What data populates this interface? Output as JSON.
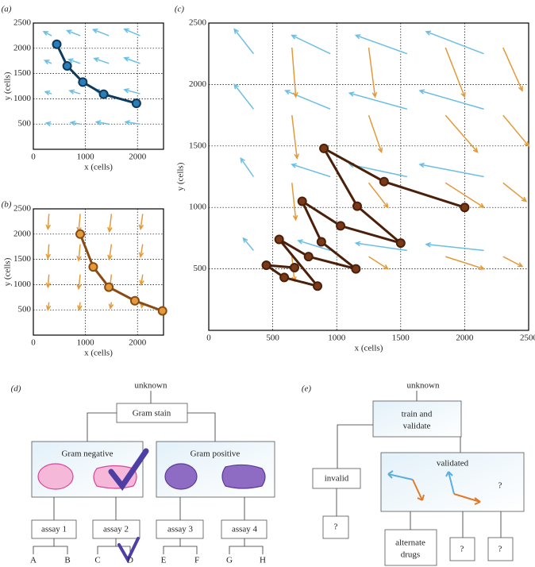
{
  "chart_data": [
    {
      "type": "line",
      "label": "(a)",
      "xlabel": "x (cells)",
      "ylabel": "y (cells)",
      "xlim": [
        0,
        2500
      ],
      "ylim": [
        0,
        2500
      ],
      "xticks": [
        0,
        1000,
        2000
      ],
      "yticks": [
        500,
        1000,
        1500,
        2000,
        2500
      ],
      "grid": true,
      "x": [
        450,
        650,
        950,
        1350,
        1980
      ],
      "series": [
        {
          "color": "#2a7db5",
          "edge": "#0d3a5e",
          "values": [
            2080,
            1650,
            1330,
            1090,
            910
          ]
        }
      ],
      "vectors": [
        {
          "color": "#6cbfe3",
          "x": [
            350,
            900,
            1450,
            2050,
            350,
            900,
            1450,
            2050,
            350,
            900,
            1450,
            2050,
            350,
            900,
            1450,
            2050
          ],
          "y": [
            2250,
            2250,
            2250,
            2250,
            1700,
            1700,
            1700,
            1700,
            1100,
            1100,
            1100,
            1100,
            500,
            500,
            500,
            500
          ],
          "u": [
            -150,
            -250,
            -300,
            -300,
            -130,
            -220,
            -280,
            -300,
            -120,
            -200,
            -260,
            -300,
            -100,
            -180,
            -240,
            -280
          ],
          "v": [
            80,
            100,
            120,
            130,
            60,
            80,
            100,
            110,
            40,
            60,
            70,
            80,
            20,
            30,
            40,
            40
          ]
        }
      ]
    },
    {
      "type": "line",
      "label": "(b)",
      "xlabel": "x (cells)",
      "ylabel": "y (cells)",
      "xlim": [
        0,
        2500
      ],
      "ylim": [
        0,
        2500
      ],
      "xticks": [
        0,
        1000,
        2000
      ],
      "yticks": [
        500,
        1000,
        1500,
        2000,
        2500
      ],
      "grid": true,
      "x": [
        900,
        1150,
        1450,
        1950,
        2480
      ],
      "series": [
        {
          "color": "#e39a3b",
          "edge": "#8a4a14",
          "values": [
            2000,
            1350,
            950,
            680,
            480
          ]
        }
      ],
      "vectors": [
        {
          "color": "#e39a3b",
          "x": [
            300,
            900,
            1500,
            2100,
            300,
            900,
            1500,
            2100,
            300,
            900,
            1500,
            2100,
            300,
            900,
            1500,
            2100
          ],
          "y": [
            2400,
            2400,
            2400,
            2400,
            1800,
            1800,
            1800,
            1800,
            1200,
            1200,
            1200,
            1200,
            650,
            650,
            650,
            650
          ],
          "u": [
            -20,
            -30,
            -40,
            -40,
            -20,
            -30,
            -40,
            -40,
            -20,
            -30,
            -30,
            -30,
            -20,
            -20,
            -20,
            -20
          ],
          "v": [
            -300,
            -350,
            -350,
            -300,
            -280,
            -320,
            -300,
            -250,
            -250,
            -280,
            -250,
            -200,
            -150,
            -150,
            -120,
            -100
          ]
        }
      ]
    },
    {
      "type": "line",
      "label": "(c)",
      "xlabel": "x (cells)",
      "ylabel": "y (cells)",
      "xlim": [
        0,
        2500
      ],
      "ylim": [
        0,
        2500
      ],
      "xticks": [
        0,
        500,
        1000,
        1500,
        2000,
        2500
      ],
      "yticks": [
        500,
        1000,
        1500,
        2000,
        2500
      ],
      "grid": true,
      "x": [
        2000,
        1370,
        900,
        1160,
        1500,
        1030,
        730,
        880,
        1150,
        780,
        550,
        850,
        590,
        450,
        670
      ],
      "series": [
        {
          "color": "#7a3a18",
          "edge": "#4a200a",
          "values": [
            1000,
            1210,
            1480,
            1010,
            710,
            850,
            1050,
            720,
            500,
            600,
            740,
            360,
            430,
            530,
            510
          ]
        }
      ],
      "vectors": [
        {
          "color": "#6cbfe3",
          "x": [
            350,
            950,
            1550,
            2150,
            350,
            950,
            1550,
            2150,
            350,
            950,
            1550,
            2150,
            350,
            950,
            1550,
            2150
          ],
          "y": [
            2250,
            2250,
            2250,
            2250,
            1800,
            1800,
            1800,
            1800,
            1250,
            1250,
            1250,
            1250,
            650,
            650,
            650,
            650
          ],
          "u": [
            -150,
            -300,
            -400,
            -450,
            -150,
            -350,
            -450,
            -500,
            -100,
            -300,
            -450,
            -500,
            -80,
            -250,
            -400,
            -450
          ],
          "v": [
            200,
            150,
            150,
            180,
            200,
            150,
            130,
            150,
            150,
            100,
            100,
            100,
            100,
            80,
            60,
            50
          ]
        },
        {
          "color": "#e39a3b",
          "x": [
            650,
            1250,
            1850,
            2300,
            650,
            1250,
            1850,
            2300,
            650,
            1250,
            1850,
            2300,
            650,
            1250,
            1850,
            2300
          ],
          "y": [
            2300,
            2300,
            2300,
            2300,
            1750,
            1750,
            1750,
            1750,
            1200,
            1200,
            1200,
            1200,
            600,
            600,
            600,
            600
          ],
          "u": [
            30,
            50,
            150,
            150,
            40,
            100,
            250,
            200,
            30,
            150,
            300,
            180,
            20,
            150,
            300,
            150
          ],
          "v": [
            -400,
            -400,
            -400,
            -350,
            -350,
            -300,
            -300,
            -250,
            -300,
            -200,
            -200,
            -150,
            -200,
            -100,
            -100,
            -80
          ]
        }
      ]
    }
  ],
  "diagrams": [
    {
      "label": "(d)",
      "root": "unknown",
      "stain": "Gram stain",
      "groups": [
        "Gram negative",
        "Gram positive"
      ],
      "assays": [
        "assay 1",
        "assay 2",
        "assay 3",
        "assay 4"
      ],
      "leaves": [
        "A",
        "B",
        "C",
        "D",
        "E",
        "F",
        "G",
        "H"
      ]
    },
    {
      "label": "(e)",
      "root": "unknown",
      "step": [
        "train and",
        "validate"
      ],
      "outcomes": [
        "invalid",
        "validated"
      ],
      "unknowns": [
        "?",
        "?",
        "?",
        "?"
      ],
      "action": [
        "alternate",
        "drugs"
      ]
    }
  ]
}
